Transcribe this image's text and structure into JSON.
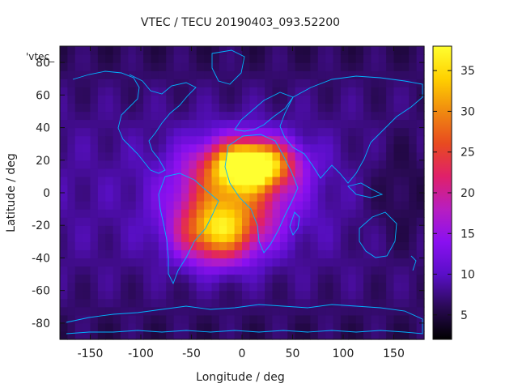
{
  "chart_data": {
    "type": "heatmap",
    "title": "VTEC / TECU 20190403_093.52200",
    "xlabel": "Longitude / deg",
    "ylabel": "Latitude / deg",
    "series_key": "'vtec_",
    "xlim": [
      -180,
      180
    ],
    "ylim": [
      -90,
      90
    ],
    "xticks": [
      -150,
      -100,
      -50,
      0,
      50,
      100,
      150
    ],
    "yticks": [
      -80,
      -60,
      -40,
      -20,
      0,
      20,
      40,
      60,
      80
    ],
    "colorbar": {
      "min": 2,
      "max": 38,
      "ticks": [
        5,
        10,
        15,
        20,
        25,
        30,
        35
      ],
      "stops": [
        "#000000",
        "#2a0a55",
        "#5a0fc8",
        "#8a10f0",
        "#b81ec0",
        "#e0206a",
        "#e84a20",
        "#f08a10",
        "#ffd000",
        "#ffff30"
      ]
    },
    "grid": {
      "lon_step": 7.5,
      "lat_step": 5,
      "background_tec": 6,
      "features": [
        {
          "name": "equatorial-anomaly-north",
          "lon": 10,
          "lat": 18,
          "peak_tec": 30,
          "lon_width": 38,
          "lat_width": 14
        },
        {
          "name": "equatorial-anomaly-south",
          "lon": -25,
          "lat": -25,
          "peak_tec": 20,
          "lon_width": 38,
          "lat_width": 18
        },
        {
          "name": "daytime-crest",
          "lon": -10,
          "lat": 0,
          "peak_tec": 18,
          "lon_width": 55,
          "lat_width": 28
        },
        {
          "name": "night-trough",
          "lon": 160,
          "lat": 0,
          "peak_tec": -3,
          "lon_width": 40,
          "lat_width": 40
        }
      ]
    },
    "coastlines": "world continental outlines overlaid in light blue"
  }
}
